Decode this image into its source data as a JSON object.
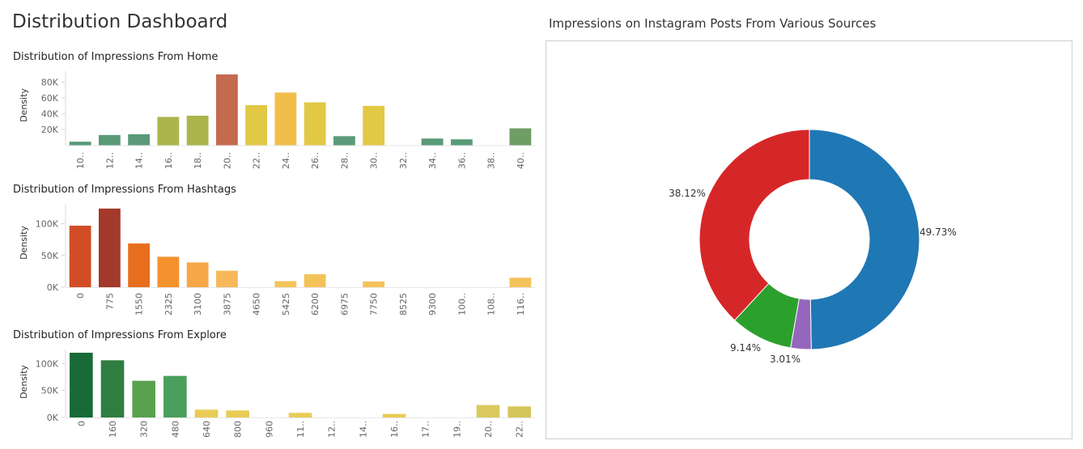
{
  "dashboard": {
    "title": "Distribution Dashboard",
    "pie_title": "Impressions on Instagram Posts From Various Sources"
  },
  "chart_data": [
    {
      "type": "bar",
      "title": "Distribution of Impressions From Home",
      "ylabel": "Density",
      "ylim": [
        0,
        90000
      ],
      "yticks": [
        20000,
        40000,
        60000,
        80000
      ],
      "ytick_labels": [
        "20K",
        "40K",
        "60K",
        "80K"
      ],
      "categories": [
        "10..",
        "12..",
        "14..",
        "16..",
        "18..",
        "20..",
        "22..",
        "24..",
        "26..",
        "28..",
        "30..",
        "32..",
        "34..",
        "36..",
        "38..",
        "40.."
      ],
      "values": [
        4500,
        13000,
        14000,
        36000,
        37500,
        90000,
        51000,
        67000,
        54500,
        11500,
        50000,
        0,
        8500,
        7500,
        0,
        21500
      ],
      "colors": [
        "#5a9a78",
        "#5a9a78",
        "#5a9a78",
        "#acb54c",
        "#acb54c",
        "#c46a4e",
        "#e1c845",
        "#f2be4b",
        "#e1c845",
        "#5a9a78",
        "#e1c845",
        "#5a9a78",
        "#5a9a78",
        "#5a9a78",
        "#5a9a78",
        "#6f9e65"
      ]
    },
    {
      "type": "bar",
      "title": "Distribution of Impressions From Hashtags",
      "ylabel": "Density",
      "ylim": [
        0,
        125000
      ],
      "yticks": [
        0,
        50000,
        100000
      ],
      "ytick_labels": [
        "0K",
        "50K",
        "100K"
      ],
      "categories": [
        "0",
        "775",
        "1550",
        "2325",
        "3100",
        "3875",
        "4650",
        "5425",
        "6200",
        "6975",
        "7750",
        "8525",
        "9300",
        "100..",
        "108..",
        "116.."
      ],
      "values": [
        97000,
        124000,
        69000,
        48000,
        39000,
        26000,
        0,
        9500,
        20500,
        0,
        9000,
        0,
        0,
        0,
        0,
        15000
      ],
      "colors": [
        "#d24d26",
        "#a3392a",
        "#e86e1f",
        "#f4922e",
        "#f7a748",
        "#f6b85a",
        "#f3c35a",
        "#f3c35a",
        "#f3c35a",
        "#f3c35a",
        "#f3c35a",
        "#f3c35a",
        "#f3c35a",
        "#f3c35a",
        "#f3c35a",
        "#f3c35a"
      ]
    },
    {
      "type": "bar",
      "title": "Distribution of Impressions From Explore",
      "ylabel": "Density",
      "ylim": [
        0,
        120000
      ],
      "yticks": [
        0,
        50000,
        100000
      ],
      "ytick_labels": [
        "0K",
        "50K",
        "100K"
      ],
      "categories": [
        "0",
        "160",
        "320",
        "480",
        "640",
        "800",
        "960",
        "11..",
        "12..",
        "14..",
        "16..",
        "17..",
        "19..",
        "20..",
        "22.."
      ],
      "values": [
        120000,
        106000,
        68000,
        77000,
        14500,
        13000,
        0,
        8500,
        0,
        0,
        6500,
        0,
        0,
        23000,
        20500
      ],
      "colors": [
        "#186b37",
        "#2f7d41",
        "#59a14f",
        "#4a9f5c",
        "#e9cc55",
        "#e9cc55",
        "#e9cc55",
        "#e9cc55",
        "#e9cc55",
        "#e9cc55",
        "#e9cc55",
        "#e9cc55",
        "#e9cc55",
        "#d9c95e",
        "#d5c65a"
      ]
    },
    {
      "type": "pie",
      "title": "Impressions on Instagram Posts From Various Sources",
      "slices": [
        {
          "value": 49.73,
          "label": "49.73%",
          "color": "#1f77b4"
        },
        {
          "value": 3.01,
          "label": "3.01%",
          "color": "#9467bd"
        },
        {
          "value": 9.14,
          "label": "9.14%",
          "color": "#2ca02c"
        },
        {
          "value": 38.12,
          "label": "38.12%",
          "color": "#d62728"
        }
      ]
    }
  ]
}
